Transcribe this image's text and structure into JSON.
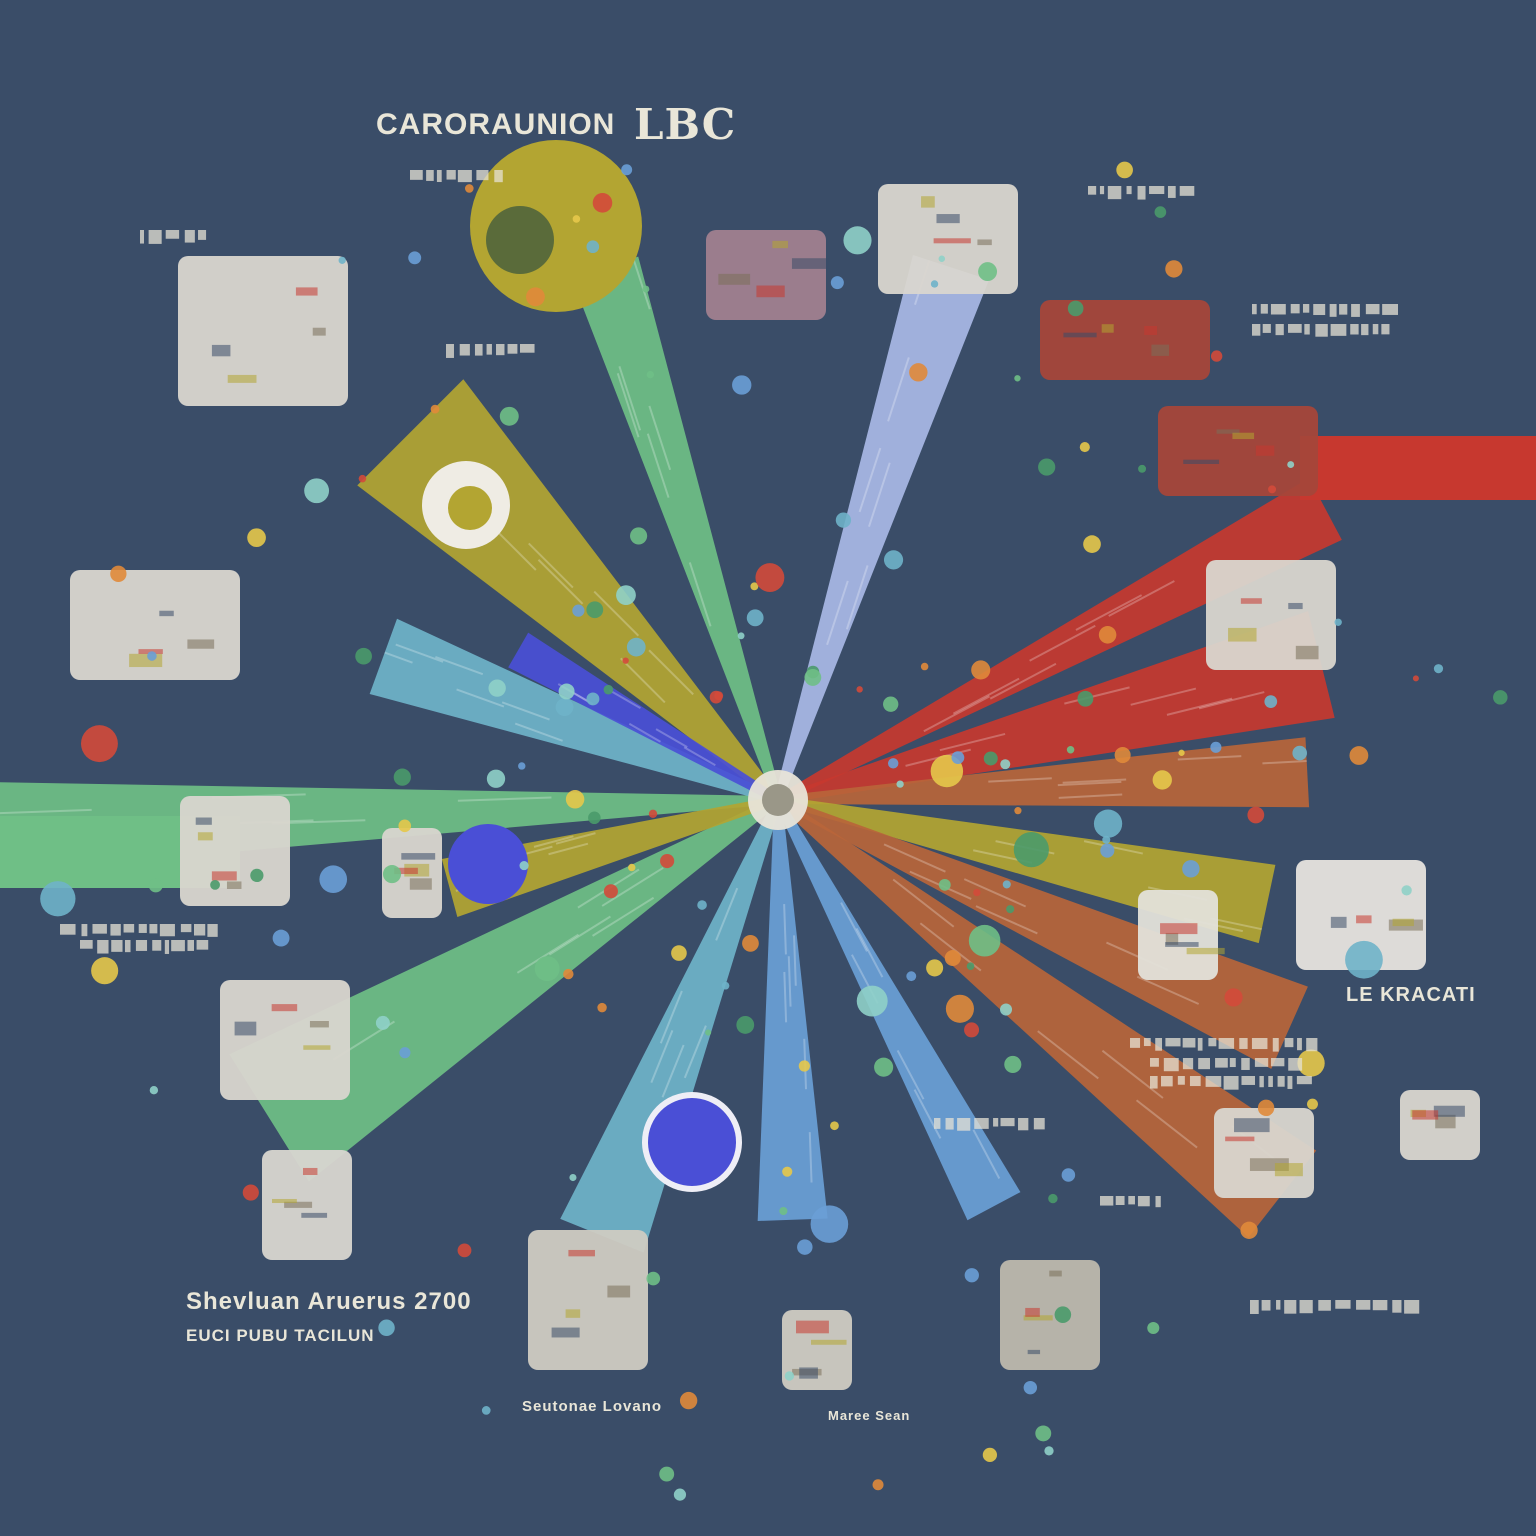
{
  "labels": {
    "title_left": "CARORAUNION",
    "title_right": "LBC",
    "caption_bottom_left_1": "Shevluan Aruerus 2700",
    "caption_bottom_left_2": "EUCI PUBU TACILUN",
    "caption_right": "LE KRACATI",
    "caption_bottom_mid": "Seutonae Lovano",
    "caption_bottom_mid_2": "Maree Sean"
  },
  "colors": {
    "background": "#3a4d68",
    "mustard": "#b3a532",
    "red": "#c7382f",
    "rust": "#b8653a",
    "green": "#6fbf86",
    "teal": "#6fb3c9",
    "blue": "#6a9fd6",
    "lavender": "#a9b8e6",
    "violet": "#4a4fd6",
    "silver": "#d9d6cf"
  }
}
